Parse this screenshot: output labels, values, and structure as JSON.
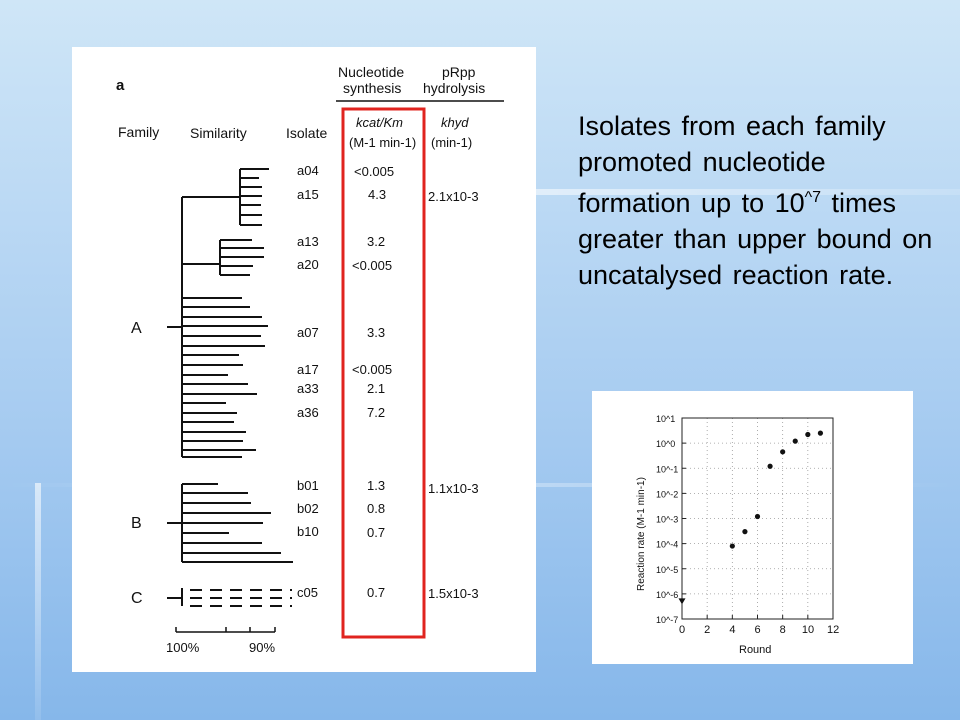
{
  "slide": {
    "text_main": "Isolates from each family promoted nucleotide formation up to 10",
    "text_sup": "^7",
    "text_tail": " times greater than upper bound on uncatalysed reaction rate."
  },
  "figure": {
    "panel_label": "a",
    "headers": {
      "family": "Family",
      "similarity": "Similarity",
      "isolate": "Isolate",
      "nucleotide_line1": "Nucleotide",
      "nucleotide_line2": "synthesis",
      "prpp_line1": "pRpp",
      "prpp_line2": "hydrolysis",
      "kcat_km": "kcat/Km",
      "kcat_units": "(M-1 min-1)",
      "khyd": "khyd",
      "khyd_units": "(min-1)"
    },
    "families": [
      "A",
      "B",
      "C"
    ],
    "isolates": [
      {
        "name": "a04",
        "kcat_km": "<0.005",
        "khyd": ""
      },
      {
        "name": "a15",
        "kcat_km": "4.3",
        "khyd": "2.1x10-3"
      },
      {
        "name": "a13",
        "kcat_km": "3.2",
        "khyd": ""
      },
      {
        "name": "a20",
        "kcat_km": "<0.005",
        "khyd": ""
      },
      {
        "name": "a07",
        "kcat_km": "3.3",
        "khyd": ""
      },
      {
        "name": "a17",
        "kcat_km": "<0.005",
        "khyd": ""
      },
      {
        "name": "a33",
        "kcat_km": "2.1",
        "khyd": ""
      },
      {
        "name": "a36",
        "kcat_km": "7.2",
        "khyd": ""
      },
      {
        "name": "b01",
        "kcat_km": "1.3",
        "khyd": "1.1x10-3"
      },
      {
        "name": "b02",
        "kcat_km": "0.8",
        "khyd": ""
      },
      {
        "name": "b10",
        "kcat_km": "0.7",
        "khyd": ""
      },
      {
        "name": "c05",
        "kcat_km": "0.7",
        "khyd": "1.5x10-3"
      }
    ],
    "similarity_axis": [
      "100%",
      "90%"
    ],
    "highlight_color": "#e0241f"
  },
  "chart_data": {
    "type": "scatter",
    "xlabel": "Round",
    "ylabel": "Reaction rate (M-1 min-1)",
    "xlim": [
      0,
      12
    ],
    "ylim_log10": [
      -7,
      1
    ],
    "log_y": true,
    "grid": true,
    "x_ticks": [
      "0",
      "2",
      "4",
      "6",
      "8",
      "10",
      "12"
    ],
    "y_ticks": [
      "10^1",
      "10^0",
      "10^-1",
      "10^-2",
      "10^-3",
      "10^-4",
      "10^-5",
      "10^-6",
      "10^-7"
    ],
    "points": [
      {
        "x": 0,
        "y": "<10^-6.3",
        "marker": "triangle-down"
      },
      {
        "x": 4,
        "y": 8e-05
      },
      {
        "x": 5,
        "y": 0.0003
      },
      {
        "x": 6,
        "y": 0.0012
      },
      {
        "x": 7,
        "y": 0.12
      },
      {
        "x": 8,
        "y": 0.45
      },
      {
        "x": 9,
        "y": 1.2
      },
      {
        "x": 10,
        "y": 2.2
      },
      {
        "x": 11,
        "y": 2.5
      }
    ]
  }
}
